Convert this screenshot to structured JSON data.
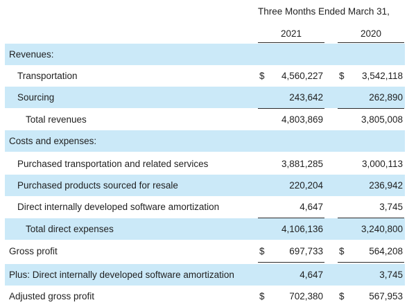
{
  "header": {
    "period": "Three Months Ended March 31,",
    "years": [
      "2021",
      "2020"
    ]
  },
  "rows": [
    {
      "label": "Revenues:",
      "c1": "",
      "c2": "",
      "cur1": "",
      "cur2": ""
    },
    {
      "label": "Transportation",
      "c1": "4,560,227",
      "c2": "3,542,118",
      "cur1": "$",
      "cur2": "$"
    },
    {
      "label": "Sourcing",
      "c1": "243,642",
      "c2": "262,890",
      "cur1": "",
      "cur2": ""
    },
    {
      "label": "Total revenues",
      "c1": "4,803,869",
      "c2": "3,805,008",
      "cur1": "",
      "cur2": ""
    },
    {
      "label": "Costs and expenses:",
      "c1": "",
      "c2": "",
      "cur1": "",
      "cur2": ""
    },
    {
      "label": "Purchased transportation and related services",
      "c1": "3,881,285",
      "c2": "3,000,113",
      "cur1": "",
      "cur2": ""
    },
    {
      "label": "Purchased products sourced for resale",
      "c1": "220,204",
      "c2": "236,942",
      "cur1": "",
      "cur2": ""
    },
    {
      "label": "Direct internally developed software amortization",
      "c1": "4,647",
      "c2": "3,745",
      "cur1": "",
      "cur2": ""
    },
    {
      "label": "Total direct expenses",
      "c1": "4,106,136",
      "c2": "3,240,800",
      "cur1": "",
      "cur2": ""
    },
    {
      "label": "Gross profit",
      "c1": "697,733",
      "c2": "564,208",
      "cur1": "$",
      "cur2": "$"
    },
    {
      "label": "Plus: Direct internally developed software amortization",
      "c1": "4,647",
      "c2": "3,745",
      "cur1": "",
      "cur2": ""
    },
    {
      "label": "Adjusted gross profit",
      "c1": "702,380",
      "c2": "567,953",
      "cur1": "$",
      "cur2": "$"
    }
  ]
}
